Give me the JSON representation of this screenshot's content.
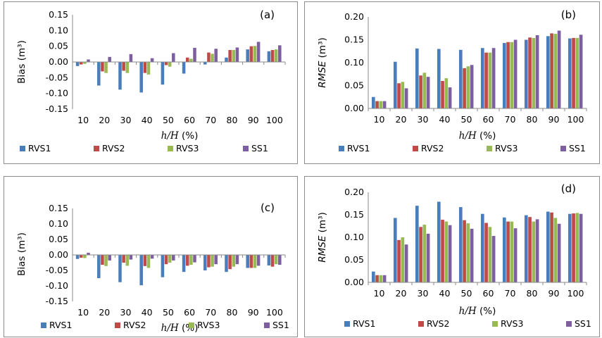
{
  "chart_data": [
    {
      "type": "bar",
      "panel": "(a)",
      "ylabel": "Bias (m³)",
      "xlabel": "h/H (%)",
      "ylim": [
        -0.15,
        0.15
      ],
      "yticks": [
        "0.15",
        "0.10",
        "0.05",
        "0.00",
        "-0.05",
        "-0.10",
        "-0.15"
      ],
      "categories": [
        "10",
        "20",
        "30",
        "40",
        "50",
        "60",
        "70",
        "80",
        "90",
        "100"
      ],
      "series": [
        {
          "name": "RVS1",
          "color": "#4a7ebb",
          "values": [
            -0.013,
            -0.075,
            -0.088,
            -0.097,
            -0.072,
            -0.037,
            -0.008,
            0.014,
            0.04,
            0.034
          ]
        },
        {
          "name": "RVS2",
          "color": "#be4b48",
          "values": [
            -0.008,
            -0.03,
            -0.028,
            -0.035,
            -0.01,
            0.014,
            0.03,
            0.038,
            0.05,
            0.038
          ]
        },
        {
          "name": "RVS3",
          "color": "#98b954",
          "values": [
            -0.006,
            -0.035,
            -0.035,
            -0.04,
            -0.015,
            0.01,
            0.026,
            0.038,
            0.051,
            0.04
          ]
        },
        {
          "name": "SS1",
          "color": "#7d5fa0",
          "values": [
            0.008,
            0.016,
            0.025,
            0.012,
            0.028,
            0.045,
            0.042,
            0.046,
            0.064,
            0.053
          ]
        }
      ]
    },
    {
      "type": "bar",
      "panel": "(b)",
      "ylabel": "RMSE (m³)",
      "xlabel": "h/H (%)",
      "ylim": [
        0,
        0.2
      ],
      "yticks": [
        "0.20",
        "0.15",
        "0.10",
        "0.05",
        "0.00"
      ],
      "categories": [
        "10",
        "20",
        "30",
        "40",
        "50",
        "60",
        "70",
        "80",
        "90",
        "100"
      ],
      "series": [
        {
          "name": "RVS1",
          "color": "#4a7ebb",
          "values": [
            0.025,
            0.102,
            0.131,
            0.13,
            0.128,
            0.132,
            0.143,
            0.15,
            0.158,
            0.153
          ]
        },
        {
          "name": "RVS2",
          "color": "#be4b48",
          "values": [
            0.016,
            0.055,
            0.072,
            0.06,
            0.088,
            0.122,
            0.145,
            0.155,
            0.164,
            0.154
          ]
        },
        {
          "name": "RVS3",
          "color": "#98b954",
          "values": [
            0.016,
            0.058,
            0.078,
            0.066,
            0.092,
            0.122,
            0.145,
            0.154,
            0.163,
            0.154
          ]
        },
        {
          "name": "SS1",
          "color": "#7d5fa0",
          "values": [
            0.016,
            0.044,
            0.069,
            0.046,
            0.095,
            0.132,
            0.15,
            0.16,
            0.17,
            0.161
          ]
        }
      ]
    },
    {
      "type": "bar",
      "panel": "(c)",
      "ylabel": "Bias (m³)",
      "xlabel": "h/H (%)",
      "ylim": [
        -0.15,
        0.15
      ],
      "yticks": [
        "0.15",
        "0.10",
        "0.05",
        "0.00",
        "-0.05",
        "-0.10",
        "-0.15"
      ],
      "categories": [
        "10",
        "20",
        "30",
        "40",
        "50",
        "60",
        "70",
        "80",
        "90",
        "100"
      ],
      "series": [
        {
          "name": "RVS1",
          "color": "#4a7ebb",
          "values": [
            -0.013,
            -0.075,
            -0.088,
            -0.098,
            -0.072,
            -0.055,
            -0.05,
            -0.055,
            -0.042,
            -0.034
          ]
        },
        {
          "name": "RVS2",
          "color": "#be4b48",
          "values": [
            -0.009,
            -0.032,
            -0.025,
            -0.036,
            -0.03,
            -0.035,
            -0.04,
            -0.046,
            -0.042,
            -0.038
          ]
        },
        {
          "name": "RVS3",
          "color": "#98b954",
          "values": [
            -0.01,
            -0.036,
            -0.035,
            -0.042,
            -0.025,
            -0.032,
            -0.038,
            -0.038,
            -0.042,
            -0.03
          ]
        },
        {
          "name": "SS1",
          "color": "#7d5fa0",
          "values": [
            0.007,
            -0.018,
            -0.015,
            -0.012,
            -0.018,
            -0.024,
            -0.03,
            -0.03,
            -0.035,
            -0.032
          ]
        }
      ]
    },
    {
      "type": "bar",
      "panel": "(d)",
      "ylabel": "RMSE (m³)",
      "xlabel": "h/H (%)",
      "ylim": [
        0,
        0.2
      ],
      "yticks": [
        "0.20",
        "0.15",
        "0.10",
        "0.05",
        "0.00"
      ],
      "categories": [
        "10",
        "20",
        "30",
        "40",
        "50",
        "60",
        "70",
        "80",
        "90",
        "100"
      ],
      "series": [
        {
          "name": "RVS1",
          "color": "#4a7ebb",
          "values": [
            0.024,
            0.143,
            0.17,
            0.179,
            0.167,
            0.152,
            0.144,
            0.149,
            0.157,
            0.152
          ]
        },
        {
          "name": "RVS2",
          "color": "#be4b48",
          "values": [
            0.016,
            0.094,
            0.123,
            0.139,
            0.138,
            0.132,
            0.135,
            0.145,
            0.155,
            0.153
          ]
        },
        {
          "name": "RVS3",
          "color": "#98b954",
          "values": [
            0.016,
            0.1,
            0.128,
            0.135,
            0.131,
            0.123,
            0.135,
            0.135,
            0.143,
            0.154
          ]
        },
        {
          "name": "SS1",
          "color": "#7d5fa0",
          "values": [
            0.016,
            0.084,
            0.108,
            0.127,
            0.119,
            0.103,
            0.12,
            0.14,
            0.13,
            0.152
          ]
        }
      ]
    }
  ]
}
